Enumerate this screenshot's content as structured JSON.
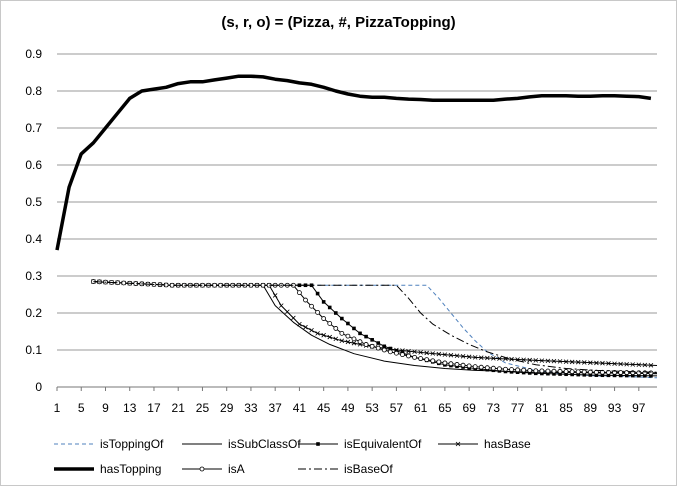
{
  "chart_data": {
    "type": "line",
    "title": "(s, r, o) = (Pizza, #, PizzaTopping)",
    "xlabel": "",
    "ylabel": "",
    "x_range": [
      1,
      100
    ],
    "x_ticks": [
      1,
      5,
      9,
      13,
      17,
      21,
      25,
      29,
      33,
      37,
      41,
      45,
      49,
      53,
      57,
      61,
      65,
      69,
      73,
      77,
      81,
      85,
      89,
      93,
      97
    ],
    "ylim": [
      0,
      0.9
    ],
    "y_ticks": [
      "0",
      "0.1",
      "0.2",
      "0.3",
      "0.4",
      "0.5",
      "0.6",
      "0.7",
      "0.8",
      "0.9"
    ],
    "grid": "horizontal",
    "legend_position": "bottom",
    "series": [
      {
        "name": "isToppingOf",
        "style": "dashed-blue",
        "points": [
          [
            7,
            0.285
          ],
          [
            20,
            0.275
          ],
          [
            40,
            0.275
          ],
          [
            60,
            0.275
          ],
          [
            62,
            0.275
          ],
          [
            64,
            0.24
          ],
          [
            66,
            0.2
          ],
          [
            68,
            0.16
          ],
          [
            70,
            0.125
          ],
          [
            72,
            0.095
          ],
          [
            75,
            0.065
          ],
          [
            80,
            0.045
          ],
          [
            85,
            0.035
          ],
          [
            90,
            0.03
          ],
          [
            95,
            0.028
          ],
          [
            100,
            0.025
          ]
        ]
      },
      {
        "name": "isSubClassOf",
        "style": "solid-thin",
        "points": [
          [
            7,
            0.285
          ],
          [
            20,
            0.275
          ],
          [
            34,
            0.275
          ],
          [
            35,
            0.275
          ],
          [
            37,
            0.22
          ],
          [
            40,
            0.175
          ],
          [
            43,
            0.14
          ],
          [
            46,
            0.115
          ],
          [
            50,
            0.09
          ],
          [
            55,
            0.07
          ],
          [
            60,
            0.058
          ],
          [
            65,
            0.05
          ],
          [
            70,
            0.045
          ],
          [
            80,
            0.04
          ],
          [
            90,
            0.038
          ],
          [
            100,
            0.036
          ]
        ]
      },
      {
        "name": "isEquivalentOf",
        "style": "solid-square",
        "points": [
          [
            7,
            0.285
          ],
          [
            20,
            0.275
          ],
          [
            42,
            0.275
          ],
          [
            43,
            0.275
          ],
          [
            45,
            0.23
          ],
          [
            48,
            0.185
          ],
          [
            51,
            0.145
          ],
          [
            55,
            0.11
          ],
          [
            60,
            0.08
          ],
          [
            65,
            0.06
          ],
          [
            70,
            0.05
          ],
          [
            75,
            0.042
          ],
          [
            80,
            0.037
          ],
          [
            90,
            0.032
          ],
          [
            100,
            0.03
          ]
        ]
      },
      {
        "name": "hasBase",
        "style": "solid-x",
        "points": [
          [
            7,
            0.285
          ],
          [
            20,
            0.275
          ],
          [
            35,
            0.275
          ],
          [
            36,
            0.275
          ],
          [
            38,
            0.22
          ],
          [
            41,
            0.17
          ],
          [
            44,
            0.145
          ],
          [
            48,
            0.125
          ],
          [
            52,
            0.112
          ],
          [
            57,
            0.1
          ],
          [
            62,
            0.092
          ],
          [
            70,
            0.08
          ],
          [
            80,
            0.072
          ],
          [
            90,
            0.065
          ],
          [
            100,
            0.058
          ]
        ]
      },
      {
        "name": "hasTopping",
        "style": "solid-thick",
        "points": [
          [
            1,
            0.37
          ],
          [
            3,
            0.54
          ],
          [
            5,
            0.63
          ],
          [
            7,
            0.66
          ],
          [
            9,
            0.7
          ],
          [
            11,
            0.74
          ],
          [
            13,
            0.78
          ],
          [
            15,
            0.8
          ],
          [
            17,
            0.805
          ],
          [
            19,
            0.81
          ],
          [
            21,
            0.82
          ],
          [
            23,
            0.825
          ],
          [
            25,
            0.825
          ],
          [
            27,
            0.83
          ],
          [
            29,
            0.835
          ],
          [
            31,
            0.84
          ],
          [
            33,
            0.84
          ],
          [
            35,
            0.838
          ],
          [
            37,
            0.832
          ],
          [
            39,
            0.828
          ],
          [
            41,
            0.822
          ],
          [
            43,
            0.818
          ],
          [
            45,
            0.81
          ],
          [
            47,
            0.8
          ],
          [
            49,
            0.792
          ],
          [
            51,
            0.786
          ],
          [
            53,
            0.783
          ],
          [
            55,
            0.783
          ],
          [
            57,
            0.78
          ],
          [
            59,
            0.778
          ],
          [
            61,
            0.777
          ],
          [
            63,
            0.775
          ],
          [
            65,
            0.775
          ],
          [
            67,
            0.775
          ],
          [
            69,
            0.775
          ],
          [
            71,
            0.775
          ],
          [
            73,
            0.775
          ],
          [
            75,
            0.778
          ],
          [
            77,
            0.78
          ],
          [
            79,
            0.784
          ],
          [
            81,
            0.787
          ],
          [
            83,
            0.787
          ],
          [
            85,
            0.787
          ],
          [
            87,
            0.786
          ],
          [
            89,
            0.786
          ],
          [
            91,
            0.787
          ],
          [
            93,
            0.787
          ],
          [
            95,
            0.786
          ],
          [
            97,
            0.785
          ],
          [
            99,
            0.78
          ]
        ]
      },
      {
        "name": "isA",
        "style": "solid-circle",
        "points": [
          [
            7,
            0.285
          ],
          [
            20,
            0.275
          ],
          [
            39,
            0.275
          ],
          [
            40,
            0.275
          ],
          [
            42,
            0.235
          ],
          [
            45,
            0.185
          ],
          [
            48,
            0.145
          ],
          [
            52,
            0.115
          ],
          [
            56,
            0.095
          ],
          [
            60,
            0.08
          ],
          [
            65,
            0.065
          ],
          [
            70,
            0.055
          ],
          [
            75,
            0.048
          ],
          [
            80,
            0.044
          ],
          [
            90,
            0.04
          ],
          [
            100,
            0.038
          ]
        ]
      },
      {
        "name": "isBaseOf",
        "style": "dashdot",
        "points": [
          [
            7,
            0.285
          ],
          [
            20,
            0.275
          ],
          [
            55,
            0.275
          ],
          [
            57,
            0.275
          ],
          [
            59,
            0.24
          ],
          [
            61,
            0.2
          ],
          [
            63,
            0.17
          ],
          [
            66,
            0.14
          ],
          [
            69,
            0.115
          ],
          [
            72,
            0.095
          ],
          [
            76,
            0.075
          ],
          [
            80,
            0.06
          ],
          [
            85,
            0.05
          ],
          [
            90,
            0.045
          ],
          [
            95,
            0.042
          ],
          [
            100,
            0.04
          ]
        ]
      }
    ]
  }
}
